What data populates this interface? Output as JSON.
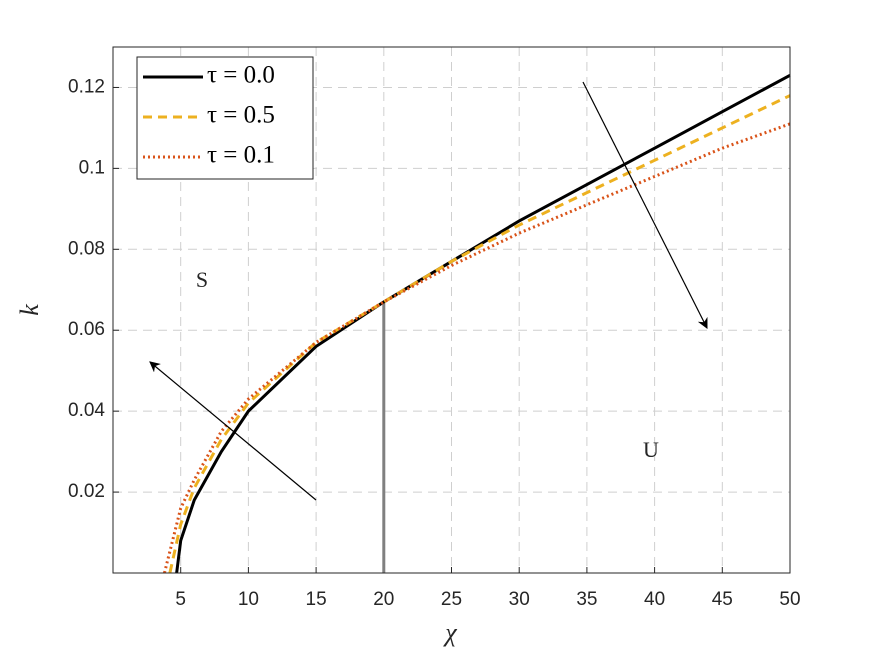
{
  "chart_data": {
    "type": "line",
    "xlabel": "χ",
    "ylabel": "k",
    "xlim": [
      0,
      50
    ],
    "ylim": [
      0,
      0.13
    ],
    "xticks": [
      5,
      10,
      15,
      20,
      25,
      30,
      35,
      40,
      45,
      50
    ],
    "yticks": [
      0.02,
      0.04,
      0.06,
      0.08,
      0.1,
      0.12
    ],
    "grid": true,
    "legend": "upper left",
    "series": [
      {
        "name": "τ = 0.0",
        "color": "#000000",
        "dash": "solid",
        "x": [
          4.7,
          5,
          6,
          8,
          10,
          15,
          20,
          25,
          30,
          35,
          40,
          45,
          50
        ],
        "values": [
          0,
          0.008,
          0.018,
          0.03,
          0.04,
          0.056,
          0.067,
          0.077,
          0.087,
          0.096,
          0.105,
          0.114,
          0.123
        ]
      },
      {
        "name": "τ = 0.5",
        "color": "#EDB120",
        "dash": "dashed",
        "x": [
          4.2,
          5,
          6,
          8,
          10,
          15,
          20,
          25,
          30,
          35,
          40,
          45,
          50
        ],
        "values": [
          0,
          0.012,
          0.021,
          0.033,
          0.042,
          0.057,
          0.067,
          0.077,
          0.086,
          0.094,
          0.102,
          0.11,
          0.118
        ]
      },
      {
        "name": "τ = 0.1",
        "color": "#D95319",
        "dash": "dotted",
        "x": [
          3.8,
          5,
          6,
          8,
          10,
          15,
          20,
          25,
          30,
          35,
          40,
          45,
          50
        ],
        "values": [
          0,
          0.016,
          0.023,
          0.035,
          0.043,
          0.057,
          0.067,
          0.076,
          0.084,
          0.091,
          0.098,
          0.105,
          0.111
        ]
      }
    ],
    "vline": {
      "x": 20,
      "ymax": 0.067,
      "color": "#808080"
    },
    "annotations": [
      "S",
      "U"
    ]
  }
}
